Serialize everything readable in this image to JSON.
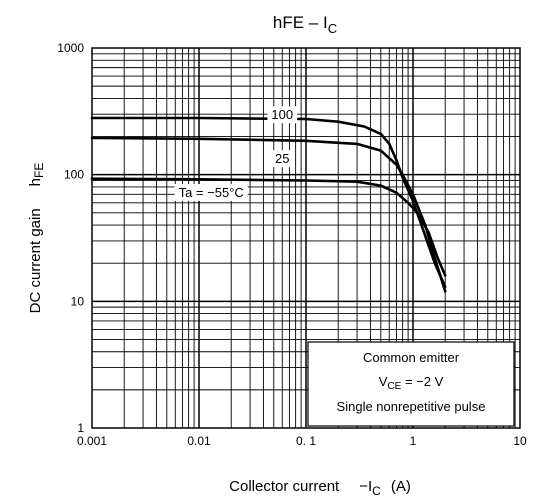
{
  "chart_data": {
    "type": "line",
    "title_main": "hFE – I",
    "title_sub": "C",
    "xlabel_main": "Collector current",
    "xlabel_sym": "−I",
    "xlabel_sub": "C",
    "xlabel_unit": "(A)",
    "ylabel_main": "DC current gain",
    "ylabel_sym": "h",
    "ylabel_sub": "FE",
    "xscale": "log",
    "yscale": "log",
    "xlim": [
      0.001,
      10
    ],
    "ylim": [
      1,
      1000
    ],
    "x_ticks": [
      {
        "value": 0.001,
        "label": "0.001"
      },
      {
        "value": 0.01,
        "label": "0.01"
      },
      {
        "value": 0.1,
        "label": "0. 1"
      },
      {
        "value": 1,
        "label": "1"
      },
      {
        "value": 10,
        "label": "10"
      }
    ],
    "y_ticks": [
      {
        "value": 1,
        "label": "1"
      },
      {
        "value": 10,
        "label": "10"
      },
      {
        "value": 100,
        "label": "100"
      },
      {
        "value": 1000,
        "label": "1000"
      }
    ],
    "grid": true,
    "series": [
      {
        "name": "100",
        "label_at": [
          0.06,
          300
        ],
        "points": [
          [
            0.001,
            280
          ],
          [
            0.01,
            280
          ],
          [
            0.1,
            275
          ],
          [
            0.2,
            262
          ],
          [
            0.35,
            240
          ],
          [
            0.5,
            210
          ],
          [
            0.6,
            175
          ],
          [
            0.7,
            130
          ],
          [
            0.8,
            95
          ],
          [
            1.0,
            62
          ],
          [
            1.3,
            33
          ],
          [
            1.6,
            20
          ],
          [
            2.0,
            13
          ]
        ]
      },
      {
        "name": "25",
        "label_at": [
          0.06,
          135
        ],
        "points": [
          [
            0.001,
            195
          ],
          [
            0.01,
            192
          ],
          [
            0.1,
            185
          ],
          [
            0.3,
            175
          ],
          [
            0.5,
            155
          ],
          [
            0.7,
            120
          ],
          [
            0.8,
            100
          ],
          [
            1.0,
            70
          ],
          [
            1.3,
            40
          ],
          [
            1.6,
            22
          ],
          [
            2.0,
            12
          ]
        ]
      },
      {
        "name": "Ta = −55°C",
        "label_at": [
          0.013,
          73
        ],
        "points": [
          [
            0.001,
            93
          ],
          [
            0.01,
            92
          ],
          [
            0.1,
            90
          ],
          [
            0.3,
            88
          ],
          [
            0.5,
            82
          ],
          [
            0.7,
            72
          ],
          [
            0.9,
            60
          ],
          [
            1.1,
            50
          ],
          [
            1.4,
            35
          ],
          [
            1.7,
            22
          ],
          [
            2.0,
            16
          ]
        ]
      }
    ],
    "annotation": {
      "line1": "Common emitter",
      "line2_sym": "V",
      "line2_sub": "CE",
      "line2_rest": " = −2 V",
      "line3": "Single nonrepetitive pulse"
    }
  }
}
